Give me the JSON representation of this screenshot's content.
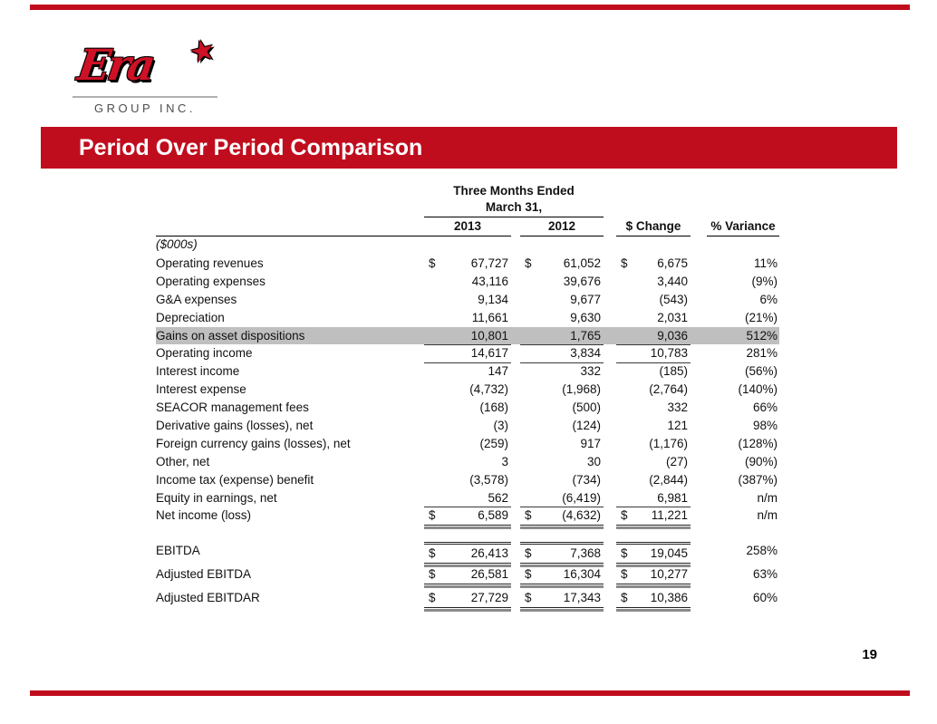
{
  "slide": {
    "title": "Period Over Period Comparison",
    "page_number": "19",
    "logo": {
      "brand": "Era",
      "star": "★",
      "subtitle": "GROUP INC."
    },
    "colors": {
      "banner_red": "#C00D1E",
      "logo_red": "#CE1126",
      "highlight_gray": "#BFBFBF"
    }
  },
  "table": {
    "header": {
      "period_line1": "Three Months Ended",
      "period_line2": "March 31,",
      "unit_note": "($000s)",
      "columns": [
        "2013",
        "2012",
        "$ Change",
        "% Variance"
      ]
    },
    "rows": [
      {
        "label": "Operating revenues",
        "y2013": "67,727",
        "y2012": "61,052",
        "change": "6,675",
        "variance": "11%",
        "dollar": true
      },
      {
        "label": "Operating expenses",
        "y2013": "43,116",
        "y2012": "39,676",
        "change": "3,440",
        "variance": "(9%)"
      },
      {
        "label": "G&A expenses",
        "y2013": "9,134",
        "y2012": "9,677",
        "change": "(543)",
        "variance": "6%"
      },
      {
        "label": "Depreciation",
        "y2013": "11,661",
        "y2012": "9,630",
        "change": "2,031",
        "variance": "(21%)"
      },
      {
        "label": "Gains on asset dispositions",
        "y2013": "10,801",
        "y2012": "1,765",
        "change": "9,036",
        "variance": "512%",
        "highlight": true,
        "underline": "single"
      },
      {
        "label": "Operating income",
        "y2013": "14,617",
        "y2012": "3,834",
        "change": "10,783",
        "variance": "281%",
        "underline": "single"
      },
      {
        "label": "Interest income",
        "y2013": "147",
        "y2012": "332",
        "change": "(185)",
        "variance": "(56%)"
      },
      {
        "label": "Interest expense",
        "y2013": "(4,732)",
        "y2012": "(1,968)",
        "change": "(2,764)",
        "variance": "(140%)"
      },
      {
        "label": "SEACOR management fees",
        "y2013": "(168)",
        "y2012": "(500)",
        "change": "332",
        "variance": "66%"
      },
      {
        "label": "Derivative gains (losses), net",
        "y2013": "(3)",
        "y2012": "(124)",
        "change": "121",
        "variance": "98%"
      },
      {
        "label": "Foreign currency gains (losses), net",
        "y2013": "(259)",
        "y2012": "917",
        "change": "(1,176)",
        "variance": "(128%)"
      },
      {
        "label": "Other, net",
        "y2013": "3",
        "y2012": "30",
        "change": "(27)",
        "variance": "(90%)"
      },
      {
        "label": "Income tax (expense) benefit",
        "y2013": "(3,578)",
        "y2012": "(734)",
        "change": "(2,844)",
        "variance": "(387%)"
      },
      {
        "label": "Equity in earnings, net",
        "y2013": "562",
        "y2012": "(6,419)",
        "change": "6,981",
        "variance": "n/m",
        "underline": "single"
      },
      {
        "label": "Net income (loss)",
        "y2013": "6,589",
        "y2012": "(4,632)",
        "change": "11,221",
        "variance": "n/m",
        "dollar": true,
        "underline": "double"
      },
      {
        "spacer": true
      },
      {
        "label": "EBITDA",
        "y2013": "26,413",
        "y2012": "7,368",
        "change": "19,045",
        "variance": "258%",
        "dollar": true,
        "underline": "double",
        "overline": "double"
      },
      {
        "label": "Adjusted EBITDA",
        "y2013": "26,581",
        "y2012": "16,304",
        "change": "10,277",
        "variance": "63%",
        "dollar": true,
        "underline": "double"
      },
      {
        "label": "Adjusted EBITDAR",
        "y2013": "27,729",
        "y2012": "17,343",
        "change": "10,386",
        "variance": "60%",
        "dollar": true,
        "underline": "double"
      }
    ]
  }
}
